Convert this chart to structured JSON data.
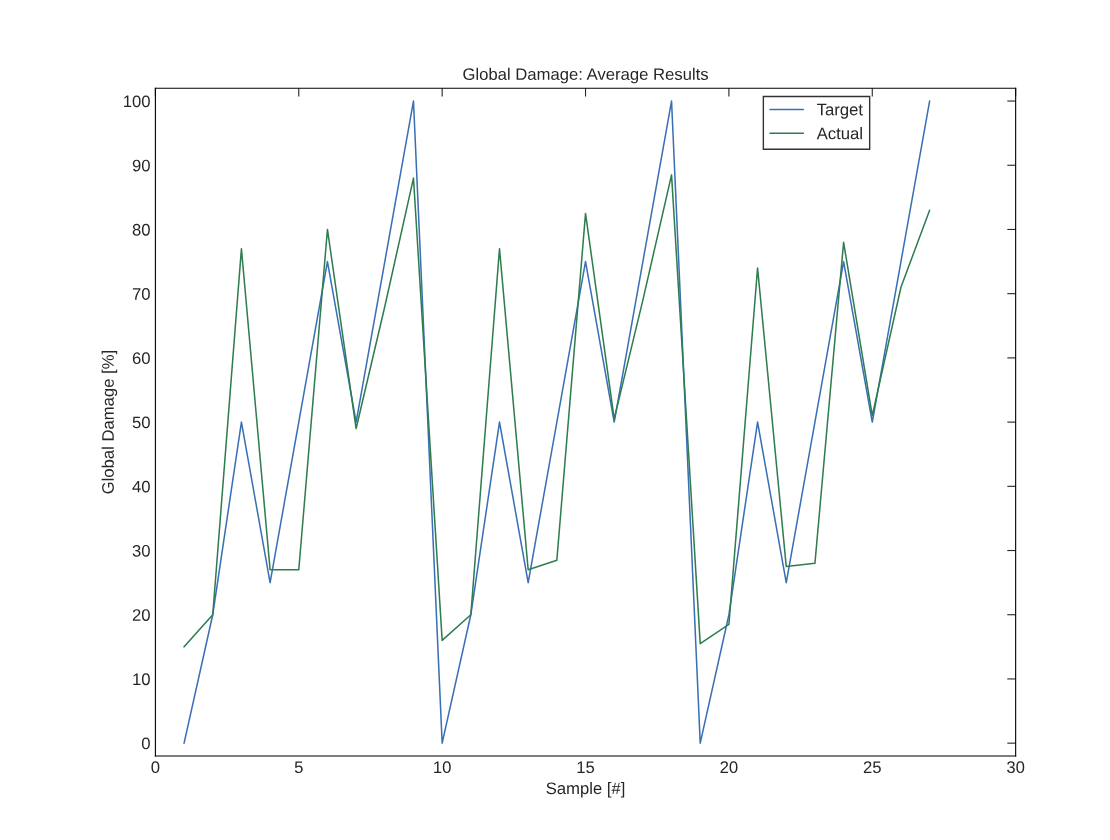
{
  "chart_data": {
    "type": "line",
    "title": "Global Damage: Average Results",
    "xlabel": "Sample [#]",
    "ylabel": "Global Damage [%]",
    "x": [
      1,
      2,
      3,
      4,
      5,
      6,
      7,
      8,
      9,
      10,
      11,
      12,
      13,
      14,
      15,
      16,
      17,
      18,
      19,
      20,
      21,
      22,
      23,
      24,
      25,
      26,
      27
    ],
    "series": [
      {
        "name": "Target",
        "color": "#3a6fb5",
        "values": [
          0,
          20,
          50,
          25,
          50,
          75,
          50,
          75,
          100,
          0,
          20,
          50,
          25,
          50,
          75,
          50,
          75,
          100,
          0,
          20,
          50,
          25,
          50,
          75,
          50,
          75,
          100
        ]
      },
      {
        "name": "Actual",
        "color": "#2e7d4f",
        "values": [
          15,
          20,
          77,
          27,
          27,
          80,
          49,
          68,
          88,
          16,
          20,
          77,
          27,
          28.5,
          82.5,
          50.5,
          69,
          88.5,
          15.5,
          18.5,
          74,
          27.5,
          28,
          78,
          51,
          71,
          83
        ]
      }
    ],
    "xlim": [
      0,
      30
    ],
    "xticks": [
      0,
      5,
      10,
      15,
      20,
      25,
      30
    ],
    "ylim": [
      -2,
      102
    ],
    "yticks": [
      0,
      10,
      20,
      30,
      40,
      50,
      60,
      70,
      80,
      90,
      100
    ],
    "grid": false,
    "legend": "top right",
    "marker": "none",
    "line_style": "solid"
  }
}
